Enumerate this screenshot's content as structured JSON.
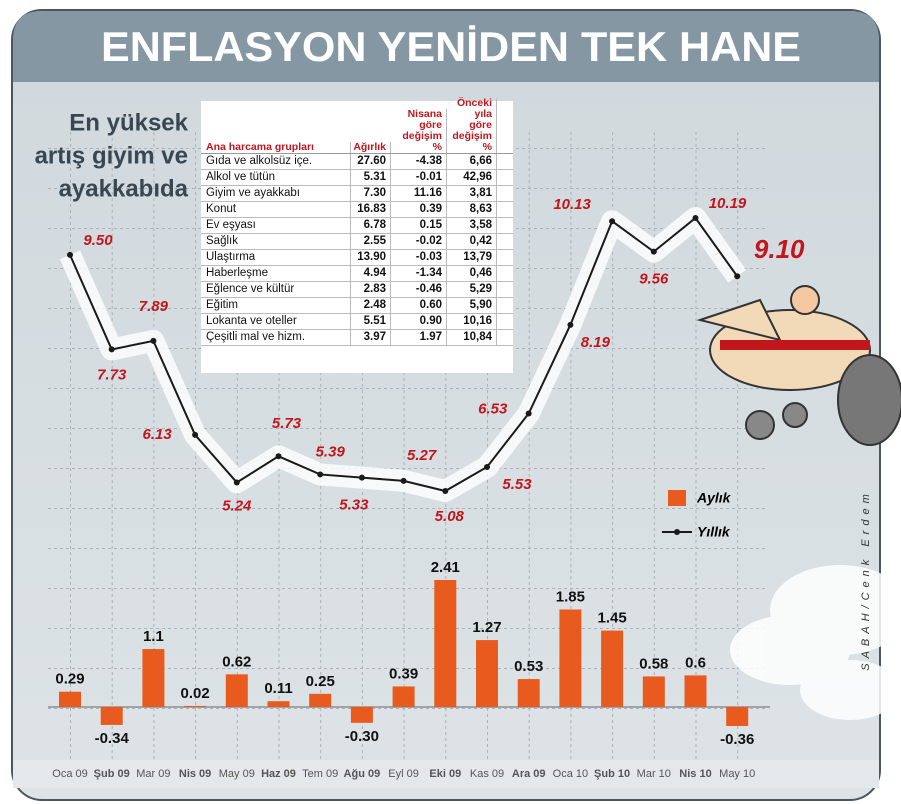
{
  "title": "ENFLASYON YENİDEN TEK HANE",
  "subtitle": [
    "En yüksek",
    "artış giyim ve",
    "ayakkabıda"
  ],
  "credit": "SABAH/Cenk Erdem",
  "table": {
    "header": [
      [
        "Ana harcama grupları"
      ],
      [
        "Ağırlık"
      ],
      [
        "Nisana göre",
        "değişim",
        "%"
      ],
      [
        "Önceki yıla",
        "göre değişim",
        "%"
      ]
    ],
    "rows": [
      [
        "Gıda ve alkolsüz içe.",
        "27.60",
        "-4.38",
        "6,66"
      ],
      [
        "Alkol ve tütün",
        "5.31",
        "-0.01",
        "42,96"
      ],
      [
        "Giyim ve ayakkabı",
        "7.30",
        "11.16",
        "3,81"
      ],
      [
        "Konut",
        "16.83",
        "0.39",
        "8,63"
      ],
      [
        "Ev eşyası",
        "6.78",
        "0.15",
        "3,58"
      ],
      [
        "Sağlık",
        "2.55",
        "-0.02",
        "0,42"
      ],
      [
        "Ulaştırma",
        "13.90",
        "-0.03",
        "13,79"
      ],
      [
        "Haberleşme",
        "4.94",
        "-1.34",
        "0,46"
      ],
      [
        "Eğlence ve kültür",
        "2.83",
        "-0.46",
        "5,29"
      ],
      [
        "Eğitim",
        "2.48",
        "0.60",
        "5,90"
      ],
      [
        "Lokanta ve oteller",
        "5.51",
        "0.90",
        "10,16"
      ],
      [
        "Çeşitli mal ve hizm.",
        "3.97",
        "1.97",
        "10,84"
      ]
    ]
  },
  "chart_data": {
    "type": "combo",
    "categories": [
      "Oca 09",
      "Şub 09",
      "Mar 09",
      "Nis 09",
      "May 09",
      "Haz 09",
      "Tem 09",
      "Ağu 09",
      "Eyl 09",
      "Eki 09",
      "Kas 09",
      "Ara 09",
      "Oca 10",
      "Şub 10",
      "Mar 10",
      "Nis 10",
      "May 10"
    ],
    "series": [
      {
        "name": "Aylık",
        "type": "bar",
        "color": "#e85a1e",
        "values": [
          0.29,
          -0.34,
          1.1,
          0.02,
          0.62,
          0.11,
          0.25,
          -0.3,
          0.39,
          2.41,
          1.27,
          0.53,
          1.85,
          1.45,
          0.58,
          0.6,
          -0.36
        ],
        "value_labels": [
          "0.29",
          "-0.34",
          "1.1",
          "0.02",
          "0.62",
          "0.11",
          "0.25",
          "-0.30",
          "0.39",
          "2.41",
          "1.27",
          "0.53",
          "1.85",
          "1.45",
          "0.58",
          "0.6",
          "-0.36"
        ]
      },
      {
        "name": "Yıllık",
        "type": "line",
        "color": "#1a1a1a",
        "values": [
          9.5,
          7.73,
          7.89,
          6.13,
          5.24,
          5.73,
          5.39,
          5.33,
          5.27,
          5.08,
          5.53,
          6.53,
          8.19,
          10.13,
          9.56,
          10.19,
          9.1
        ],
        "value_labels": [
          "9.50",
          "7.73",
          "7.89",
          "6.13",
          "5.24",
          "5.73",
          "5.39",
          "5.33",
          "5.27",
          "5.08",
          "5.53",
          "6.53",
          "8.19",
          "10.13",
          "9.56",
          "10.19",
          "9.10"
        ]
      }
    ]
  }
}
